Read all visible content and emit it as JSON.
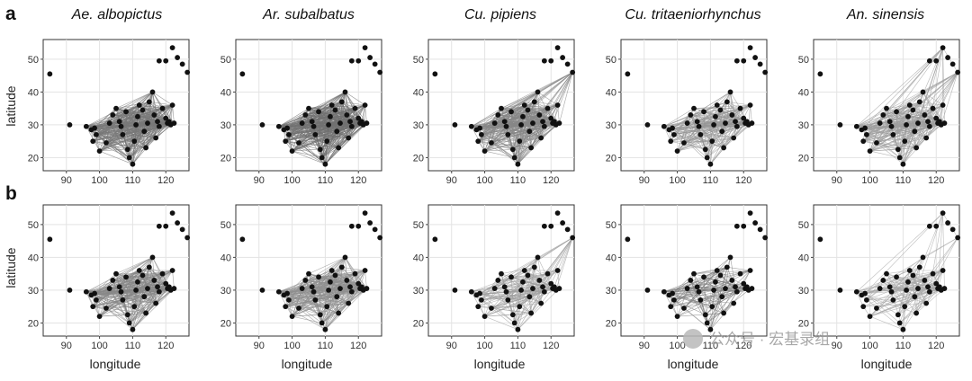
{
  "figure": {
    "panel_letters": [
      "a",
      "b"
    ],
    "titles": [
      "Ae. albopictus",
      "Ar. subalbatus",
      "Cu. pipiens",
      "Cu. tritaeniorhynchus",
      "An. sinensis"
    ],
    "xlabel": "longitude",
    "ylabel": "latitude",
    "watermark": "公众号 · 宏基录组"
  },
  "chart_data": {
    "type": "scatter",
    "description_style": "network of sampling sites connected by lines, 2 rows x 5 species",
    "xlim": [
      83,
      127
    ],
    "ylim": [
      16,
      56
    ],
    "xticks": [
      90,
      100,
      110,
      120
    ],
    "yticks": [
      20,
      30,
      40,
      50
    ],
    "grid": true,
    "sites": [
      [
        85,
        45.5
      ],
      [
        91,
        30
      ],
      [
        96,
        29.5
      ],
      [
        97.5,
        28.5
      ],
      [
        98,
        25
      ],
      [
        99,
        27
      ],
      [
        98.5,
        29
      ],
      [
        100,
        22
      ],
      [
        102,
        24.5
      ],
      [
        103,
        30.5
      ],
      [
        104,
        33
      ],
      [
        105,
        35
      ],
      [
        106,
        31
      ],
      [
        106.5,
        29.5
      ],
      [
        107,
        27
      ],
      [
        108,
        34
      ],
      [
        108.5,
        22.5
      ],
      [
        109,
        20
      ],
      [
        110,
        18
      ],
      [
        110.5,
        25
      ],
      [
        111,
        30
      ],
      [
        111.5,
        32.5
      ],
      [
        112,
        36
      ],
      [
        113,
        34.5
      ],
      [
        113.5,
        28
      ],
      [
        114,
        23
      ],
      [
        114.5,
        30.5
      ],
      [
        115,
        37
      ],
      [
        116,
        40
      ],
      [
        116.5,
        33
      ],
      [
        117,
        26
      ],
      [
        117.5,
        31
      ],
      [
        118,
        29.5
      ],
      [
        119,
        35
      ],
      [
        120,
        32
      ],
      [
        120.5,
        30.5
      ],
      [
        121,
        31
      ],
      [
        121.5,
        30
      ],
      [
        122,
        36
      ],
      [
        122.5,
        30.5
      ],
      [
        118,
        49.5
      ],
      [
        120,
        49.5
      ],
      [
        122,
        53.5
      ],
      [
        123.5,
        50.5
      ],
      [
        125,
        48.5
      ],
      [
        126.5,
        46
      ]
    ],
    "panels": [
      {
        "row": "a",
        "species": "Ae. albopictus",
        "link_density": 0.55,
        "link_darkness": 0.6,
        "link_set": "south"
      },
      {
        "row": "a",
        "species": "Ar. subalbatus",
        "link_density": 0.65,
        "link_darkness": 0.65,
        "link_set": "south"
      },
      {
        "row": "a",
        "species": "Cu. pipiens",
        "link_density": 0.55,
        "link_darkness": 0.5,
        "link_set": "all"
      },
      {
        "row": "a",
        "species": "Cu. tritaeniorhynchus",
        "link_density": 0.35,
        "link_darkness": 0.4,
        "link_set": "south"
      },
      {
        "row": "a",
        "species": "An. sinensis",
        "link_density": 0.4,
        "link_darkness": 0.35,
        "link_set": "north-east"
      },
      {
        "row": "b",
        "species": "Ae. albopictus",
        "link_density": 0.45,
        "link_darkness": 0.5,
        "link_set": "south"
      },
      {
        "row": "b",
        "species": "Ar. subalbatus",
        "link_density": 0.45,
        "link_darkness": 0.45,
        "link_set": "south"
      },
      {
        "row": "b",
        "species": "Cu. pipiens",
        "link_density": 0.25,
        "link_darkness": 0.35,
        "link_set": "all"
      },
      {
        "row": "b",
        "species": "Cu. tritaeniorhynchus",
        "link_density": 0.2,
        "link_darkness": 0.55,
        "link_set": "south"
      },
      {
        "row": "b",
        "species": "An. sinensis",
        "link_density": 0.2,
        "link_darkness": 0.3,
        "link_set": "north-east"
      }
    ]
  }
}
